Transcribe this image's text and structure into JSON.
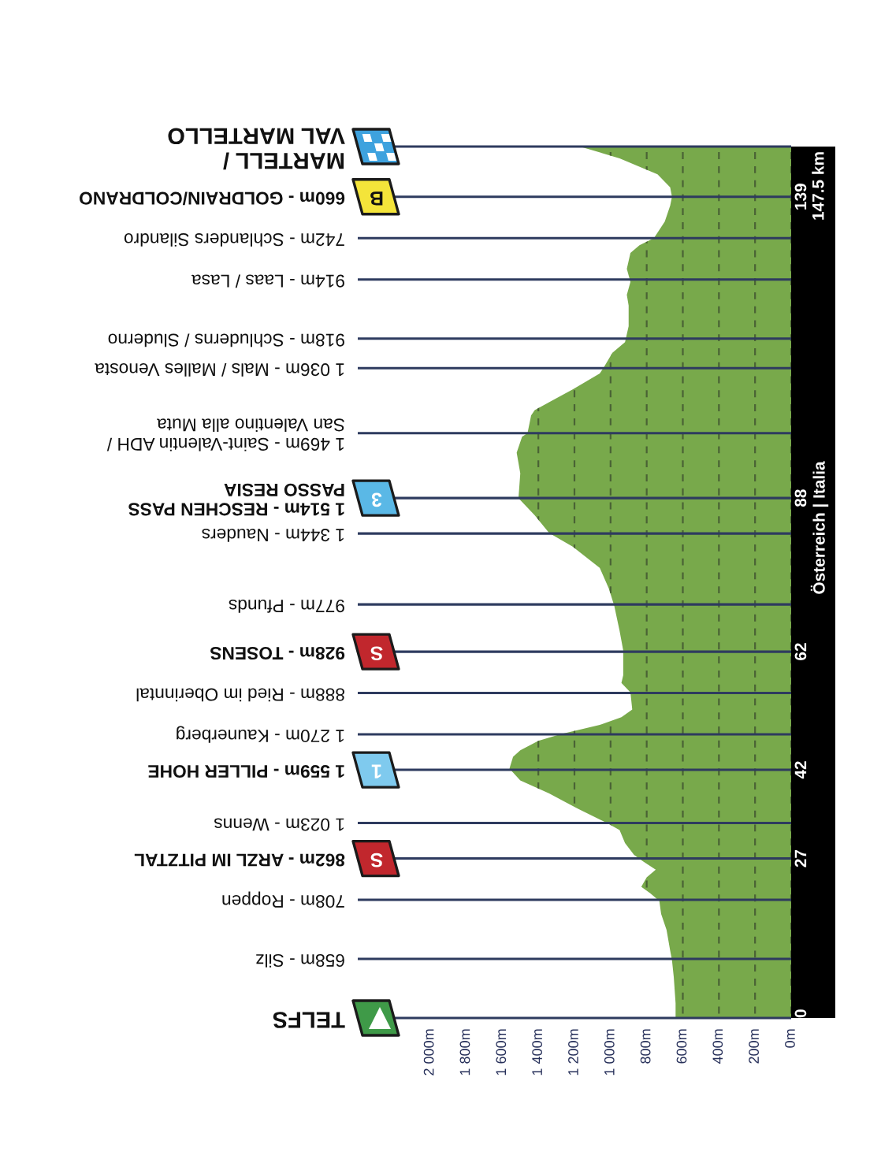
{
  "chart_data": {
    "type": "area",
    "orientation": "horizontal",
    "color": "#78a94b",
    "grid": "x",
    "x": [
      0,
      2.5,
      6.9,
      9.8,
      11.4,
      14.9,
      17.6,
      19.8,
      21.1,
      22.2,
      23.8,
      25.1,
      26.5,
      27.6,
      29.6,
      31.8,
      33.0,
      35.4,
      38.0,
      40.2,
      42.2,
      44.2,
      45.3,
      46.9,
      48.0,
      49.6,
      50.9,
      52.2,
      55.1,
      56.7,
      58.0,
      62.2,
      65.5,
      69.8,
      72.7,
      76.2,
      79.8,
      82.1,
      85.1,
      88.0,
      92.2,
      95.7,
      98.4,
      99.0,
      102.0,
      102.9,
      106.4,
      109.1,
      110.0,
      112.6,
      114.4,
      117.1,
      120.6,
      122.4,
      124.6,
      126.8,
      129.5,
      130.8,
      132.0,
      134.8,
      137.5,
      139.0,
      140.6,
      142.8,
      145.5,
      147.5
    ],
    "values": [
      640,
      640,
      650,
      660,
      670,
      690,
      720,
      730,
      780,
      830,
      800,
      750,
      820,
      870,
      920,
      950,
      1020,
      1180,
      1340,
      1500,
      1560,
      1540,
      1500,
      1400,
      1280,
      1060,
      940,
      880,
      890,
      940,
      930,
      930,
      950,
      980,
      1010,
      1060,
      1210,
      1340,
      1420,
      1510,
      1500,
      1520,
      1490,
      1460,
      1440,
      1420,
      1210,
      1060,
      1040,
      990,
      920,
      900,
      900,
      910,
      890,
      910,
      890,
      840,
      760,
      700,
      670,
      660,
      670,
      740,
      950,
      1170
    ],
    "xlim": [
      2400,
      0
    ],
    "xticks": [
      {
        "value": 2000,
        "label": "2 000m"
      },
      {
        "value": 1800,
        "label": "1 800m"
      },
      {
        "value": 1600,
        "label": "1 600m"
      },
      {
        "value": 1400,
        "label": "1 400m"
      },
      {
        "value": 1200,
        "label": "1 200m"
      },
      {
        "value": 1000,
        "label": "1 000m"
      },
      {
        "value": 800,
        "label": "800m"
      },
      {
        "value": 600,
        "label": "600m"
      },
      {
        "value": 400,
        "label": "400m"
      },
      {
        "value": 200,
        "label": "200m"
      },
      {
        "value": 0,
        "label": "0m"
      }
    ],
    "ylim": [
      -4,
      151.5
    ],
    "yticks": [
      0,
      27,
      42,
      62,
      88,
      139
    ],
    "ref_lines": [
      {
        "axis": "y",
        "value": 0,
        "label": "TELFS",
        "color": "#2e3b5f"
      },
      {
        "axis": "y",
        "value": 10,
        "label": "658m - Silz",
        "color": "#2e3b5f"
      },
      {
        "axis": "y",
        "value": 20,
        "label": "708m - Roppen",
        "color": "#2e3b5f"
      },
      {
        "axis": "y",
        "value": 27,
        "label": "862m - ARZL IM PITZTAL",
        "color": "#2e3b5f"
      },
      {
        "axis": "y",
        "value": 33,
        "label": "1 023m - Wenns",
        "color": "#2e3b5f"
      },
      {
        "axis": "y",
        "value": 42,
        "label": "1 559m - PILLER HOHE",
        "color": "#2e3b5f"
      },
      {
        "axis": "y",
        "value": 48,
        "label": "1 270m - Kaunerberg",
        "color": "#2e3b5f"
      },
      {
        "axis": "y",
        "value": 55,
        "label": "888m - Ried im Oberinntal",
        "color": "#2e3b5f"
      },
      {
        "axis": "y",
        "value": 62,
        "label": "928m - TOSENS",
        "color": "#2e3b5f"
      },
      {
        "axis": "y",
        "value": 70,
        "label": "977m - Pfunds",
        "color": "#2e3b5f"
      },
      {
        "axis": "y",
        "value": 82,
        "label": "1 344m - Nauders",
        "color": "#2e3b5f"
      },
      {
        "axis": "y",
        "value": 88,
        "label": "1 514m - RESCHEN PASS\nPASSO RESIA",
        "color": "#2e3b5f"
      },
      {
        "axis": "y",
        "value": 99,
        "label": "1 469m - Saint-Valentin ADH /\nSan Valentino alla Muta",
        "color": "#2e3b5f"
      },
      {
        "axis": "y",
        "value": 110,
        "label": "1 036m - Mals / Malles Venosta",
        "color": "#2e3b5f"
      },
      {
        "axis": "y",
        "value": 115,
        "label": "918m - Schluderns / Sluderno",
        "color": "#2e3b5f"
      },
      {
        "axis": "y",
        "value": 125,
        "label": "914m - Laas / Lasa",
        "color": "#2e3b5f"
      },
      {
        "axis": "y",
        "value": 132,
        "label": "742m - Schlanders Silandro",
        "color": "#2e3b5f"
      },
      {
        "axis": "y",
        "value": 139,
        "label": "660m - GOLDRAIN/COLDRANO",
        "color": "#2e3b5f"
      },
      {
        "axis": "y",
        "value": 147.5,
        "label": "MARTELL /\nVAL MARTELLO",
        "color": "#2e3b5f"
      }
    ],
    "annotations": [
      "S",
      "1",
      "S",
      "3",
      "B",
      "Österreich | Italia",
      "147.5 km"
    ]
  }
}
